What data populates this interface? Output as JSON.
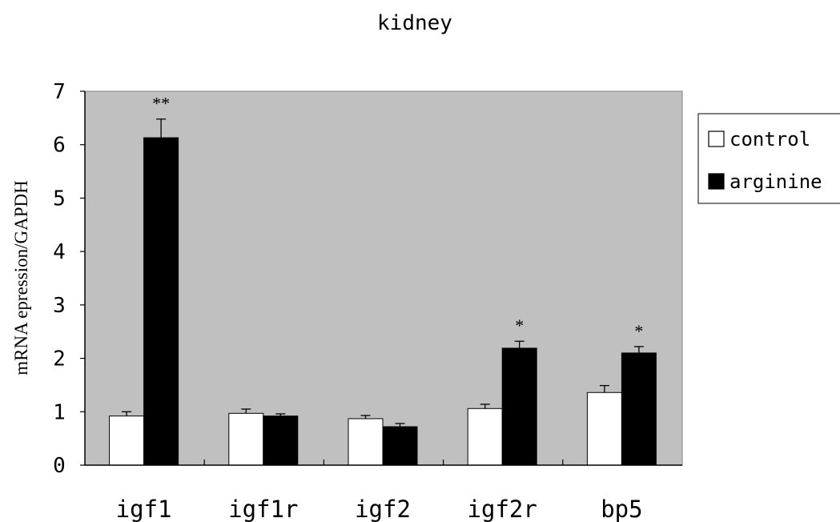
{
  "chart_data": {
    "type": "bar",
    "title": "kidney",
    "xlabel": "",
    "ylabel": "mRNA epression/GAPDH",
    "ylim": [
      0,
      7
    ],
    "yticks": [
      "0",
      "1",
      "2",
      "3",
      "4",
      "5",
      "6",
      "7"
    ],
    "categories": [
      "igf1",
      "igf1r",
      "igf2",
      "igf2r",
      "bp5"
    ],
    "series": [
      {
        "name": "control",
        "values": [
          0.92,
          0.97,
          0.87,
          1.06,
          1.36
        ],
        "errors": [
          0.08,
          0.08,
          0.06,
          0.08,
          0.13
        ]
      },
      {
        "name": "arginine",
        "values": [
          6.13,
          0.92,
          0.72,
          2.19,
          2.1
        ],
        "errors": [
          0.35,
          0.04,
          0.06,
          0.13,
          0.12
        ]
      }
    ],
    "annotations": [
      "**",
      "",
      "",
      "*",
      "*"
    ],
    "grid": false,
    "legend_position": "right",
    "colors": {
      "plot_background": "#c0c0c0",
      "control": "#ffffff",
      "arginine": "#000000",
      "axis": "#000000"
    }
  }
}
